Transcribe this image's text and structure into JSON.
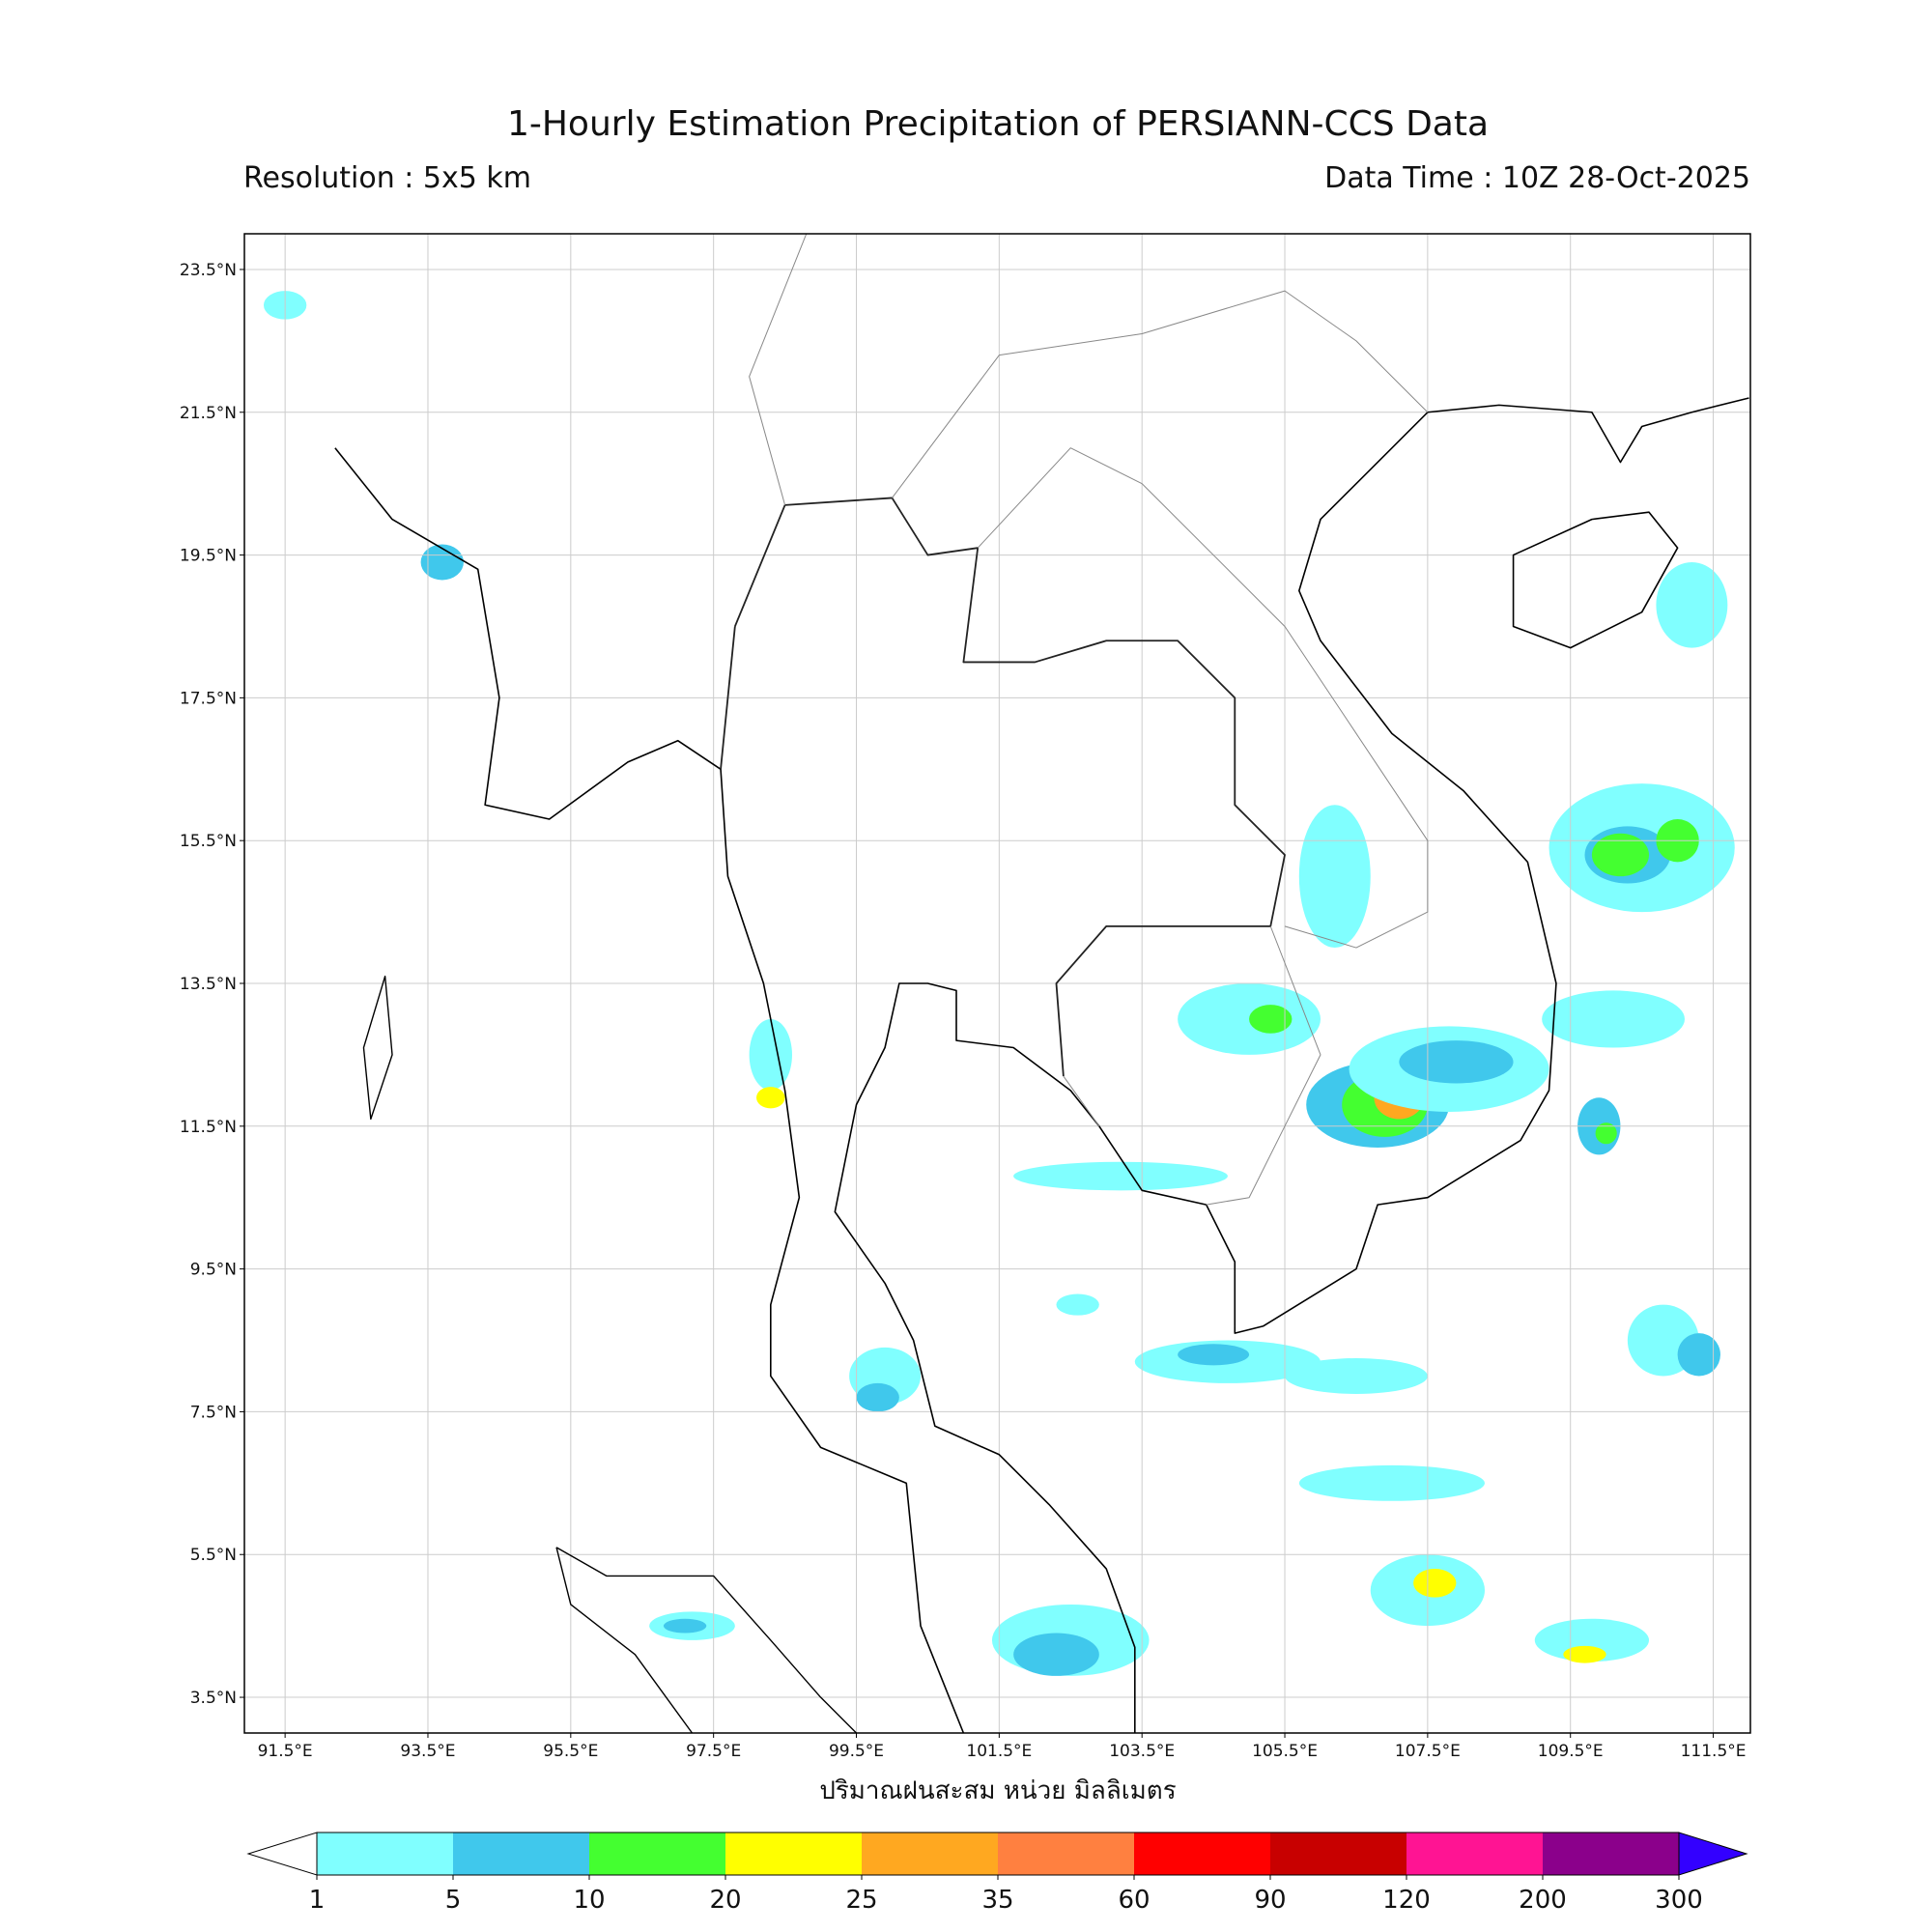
{
  "header": {
    "title": "1-Hourly Estimation Precipitation of PERSIANN-CCS Data",
    "resolution": "Resolution : 5x5 km",
    "data_time": "Data Time : 10Z 28-Oct-2025"
  },
  "map": {
    "lonlim": [
      90.93,
      112.02
    ],
    "latlim": [
      3.0,
      24.0
    ],
    "lat_ticks": [
      {
        "value": 23.5,
        "label": "23.5°N"
      },
      {
        "value": 21.5,
        "label": "21.5°N"
      },
      {
        "value": 19.5,
        "label": "19.5°N"
      },
      {
        "value": 17.5,
        "label": "17.5°N"
      },
      {
        "value": 15.5,
        "label": "15.5°N"
      },
      {
        "value": 13.5,
        "label": "13.5°N"
      },
      {
        "value": 11.5,
        "label": "11.5°N"
      },
      {
        "value": 9.5,
        "label": "9.5°N"
      },
      {
        "value": 7.5,
        "label": "7.5°N"
      },
      {
        "value": 5.5,
        "label": "5.5°N"
      },
      {
        "value": 3.5,
        "label": "3.5°N"
      }
    ],
    "lon_ticks": [
      {
        "value": 91.5,
        "label": "91.5°E"
      },
      {
        "value": 93.5,
        "label": "93.5°E"
      },
      {
        "value": 95.5,
        "label": "95.5°E"
      },
      {
        "value": 97.5,
        "label": "97.5°E"
      },
      {
        "value": 99.5,
        "label": "99.5°E"
      },
      {
        "value": 101.5,
        "label": "101.5°E"
      },
      {
        "value": 103.5,
        "label": "103.5°E"
      },
      {
        "value": 105.5,
        "label": "105.5°E"
      },
      {
        "value": 107.5,
        "label": "107.5°E"
      },
      {
        "value": 109.5,
        "label": "109.5°E"
      },
      {
        "value": 111.5,
        "label": "111.5°E"
      }
    ],
    "axis_label": "ปริมาณฝนสะสม หน่วย มิลลิเมตร"
  },
  "colorbar": {
    "boundaries": [
      1,
      5,
      10,
      20,
      25,
      35,
      60,
      90,
      120,
      200,
      300
    ],
    "colors": [
      "#80ffff",
      "#40c8ec",
      "#44ff30",
      "#ffff00",
      "#ffa820",
      "#ff8040",
      "#ff0000",
      "#c80000",
      "#ff1493",
      "#8b008b"
    ],
    "under_color": "#ffffff",
    "over_color": "#3300ff"
  }
}
